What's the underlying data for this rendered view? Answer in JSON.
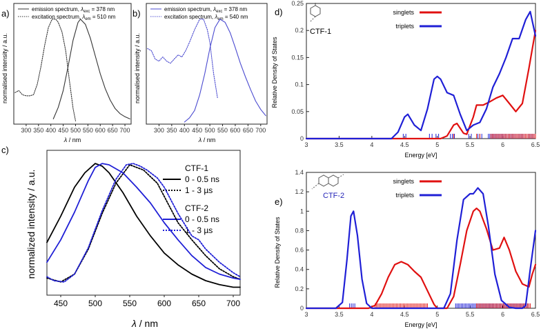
{
  "colors": {
    "black": "#222222",
    "blue": "#1f1fd6",
    "red": "#e01010",
    "navy": "#2525b8"
  },
  "chart_data": [
    {
      "id": "a",
      "type": "line",
      "panel_label": "a)",
      "xlabel_italic": "λ",
      "xlabel_rest": " / nm",
      "ylabel": "normalised intensity / a.u.",
      "xlim": [
        250,
        725
      ],
      "ylim": [
        0,
        1.15
      ],
      "xticks": [
        "300",
        "350",
        "400",
        "450",
        "500",
        "550",
        "600",
        "650",
        "700"
      ],
      "legend": [
        {
          "name": "emission spectrum, ",
          "sym": "λ",
          "sub": "exc",
          "tail": " = 378 nm",
          "style": "solid"
        },
        {
          "name": "excitation spectrum, ",
          "sym": "λ",
          "sub": "em",
          "tail": " = 510 nm",
          "style": "dotted"
        }
      ],
      "series": [
        {
          "name": "emission",
          "style": "solid",
          "color": "#333333",
          "x": [
            410,
            430,
            450,
            470,
            490,
            510,
            520,
            540,
            560,
            580,
            600,
            620,
            640,
            660,
            680,
            700,
            720
          ],
          "y": [
            0.05,
            0.16,
            0.32,
            0.55,
            0.8,
            0.97,
            1.0,
            0.95,
            0.82,
            0.65,
            0.48,
            0.34,
            0.23,
            0.15,
            0.1,
            0.07,
            0.05
          ]
        },
        {
          "name": "excitation",
          "style": "dotted",
          "color": "#333333",
          "x": [
            255,
            270,
            285,
            300,
            315,
            330,
            345,
            360,
            375,
            390,
            405,
            420,
            430,
            445,
            460,
            475,
            490,
            500
          ],
          "y": [
            0.3,
            0.32,
            0.28,
            0.27,
            0.27,
            0.28,
            0.38,
            0.55,
            0.75,
            0.92,
            1.0,
            1.0,
            0.97,
            0.88,
            0.7,
            0.42,
            0.15,
            0.03
          ]
        }
      ]
    },
    {
      "id": "b",
      "type": "line",
      "panel_label": "b)",
      "xlabel_italic": "λ",
      "xlabel_rest": " / nm",
      "ylabel": "normalised intensity / a.u.",
      "xlim": [
        250,
        725
      ],
      "ylim": [
        0,
        1.15
      ],
      "xticks": [
        "300",
        "350",
        "400",
        "450",
        "500",
        "550",
        "600",
        "650",
        "700"
      ],
      "legend": [
        {
          "name": "emission spectrum, ",
          "sym": "λ",
          "sub": "exc",
          "tail": " = 378 nm",
          "style": "solid"
        },
        {
          "name": "excitation spectrum, ",
          "sym": "λ",
          "sub": "em",
          "tail": " = 540 nm",
          "style": "dotted"
        }
      ],
      "series": [
        {
          "name": "emission",
          "style": "solid",
          "color": "#4a4ad0",
          "x": [
            400,
            420,
            440,
            460,
            480,
            500,
            520,
            540,
            560,
            580,
            600,
            620,
            640,
            660,
            680,
            700,
            720
          ],
          "y": [
            0.02,
            0.06,
            0.13,
            0.28,
            0.48,
            0.72,
            0.92,
            1.0,
            0.97,
            0.87,
            0.73,
            0.58,
            0.45,
            0.33,
            0.22,
            0.14,
            0.08
          ]
        },
        {
          "name": "excitation",
          "style": "dotted",
          "color": "#4a4ad0",
          "x": [
            255,
            270,
            285,
            300,
            315,
            330,
            345,
            360,
            375,
            390,
            405,
            420,
            440,
            460,
            475,
            490,
            500,
            515,
            530
          ],
          "y": [
            0.72,
            0.7,
            0.62,
            0.6,
            0.64,
            0.6,
            0.58,
            0.62,
            0.66,
            0.64,
            0.7,
            0.78,
            0.9,
            1.0,
            1.0,
            0.9,
            0.78,
            0.48,
            0.25
          ]
        }
      ]
    },
    {
      "id": "c",
      "type": "line",
      "panel_label": "c)",
      "xlabel_italic": "λ",
      "xlabel_rest": " / nm",
      "ylabel": "normalized intensity / a.u.",
      "xlim": [
        430,
        710
      ],
      "ylim": [
        0,
        1.1
      ],
      "xticks": [
        "450",
        "500",
        "550",
        "600",
        "650",
        "700"
      ],
      "legend_groups": [
        {
          "title": "CTF-1",
          "color": "#000000",
          "entries": [
            "0 - 0.5 ns",
            "1 - 3 µs"
          ]
        },
        {
          "title": "CTF-2",
          "color": "#1f1fd6",
          "entries": [
            "0 - 0.5 ns",
            "1 - 3 µs"
          ]
        }
      ],
      "series": [
        {
          "name": "CTF-1 0 - 0.5 ns",
          "style": "solid",
          "color": "#000000",
          "x": [
            430,
            450,
            470,
            485,
            500,
            510,
            520,
            540,
            560,
            580,
            600,
            620,
            640,
            660,
            680,
            700,
            710
          ],
          "y": [
            0.4,
            0.6,
            0.82,
            0.93,
            1.0,
            0.98,
            0.93,
            0.78,
            0.6,
            0.45,
            0.32,
            0.23,
            0.16,
            0.11,
            0.08,
            0.06,
            0.06
          ]
        },
        {
          "name": "CTF-1 1 - 3 µs",
          "style": "dotted",
          "color": "#000000",
          "x": [
            430,
            450,
            470,
            490,
            510,
            530,
            550,
            560,
            570,
            580,
            590,
            600,
            620,
            640,
            660,
            680,
            700,
            710
          ],
          "y": [
            0.13,
            0.1,
            0.16,
            0.35,
            0.62,
            0.85,
            0.99,
            0.97,
            0.95,
            0.9,
            0.85,
            0.75,
            0.55,
            0.42,
            0.3,
            0.2,
            0.14,
            0.12
          ]
        },
        {
          "name": "CTF-2 0 - 0.5 ns",
          "style": "solid",
          "color": "#1f1fd6",
          "x": [
            430,
            450,
            470,
            490,
            500,
            510,
            520,
            540,
            560,
            580,
            600,
            620,
            640,
            660,
            680,
            700,
            710
          ],
          "y": [
            0.25,
            0.42,
            0.63,
            0.87,
            0.97,
            1.0,
            0.99,
            0.93,
            0.82,
            0.7,
            0.55,
            0.42,
            0.3,
            0.21,
            0.16,
            0.13,
            0.12
          ]
        },
        {
          "name": "CTF-2 1 - 3 µs",
          "style": "dotted",
          "color": "#1f1fd6",
          "x": [
            430,
            440,
            455,
            470,
            490,
            510,
            530,
            545,
            555,
            565,
            575,
            590,
            600,
            620,
            640,
            650,
            660,
            680,
            700,
            710
          ],
          "y": [
            0.14,
            0.11,
            0.1,
            0.16,
            0.36,
            0.64,
            0.88,
            0.99,
            1.0,
            0.98,
            0.95,
            0.89,
            0.82,
            0.62,
            0.45,
            0.42,
            0.35,
            0.25,
            0.17,
            0.14
          ]
        }
      ]
    },
    {
      "id": "d",
      "type": "line",
      "panel_label": "d)",
      "xlabel": "Energy [eV]",
      "ylabel": "Relative Density of States",
      "xlim": [
        3,
        6.5
      ],
      "ylim": [
        0,
        0.25
      ],
      "xticks": [
        "3",
        "3.5",
        "4",
        "4.5",
        "5",
        "5.5",
        "6",
        "6.5"
      ],
      "yticks": [
        "0",
        "0.05",
        "0.1",
        "0.15",
        "0.2",
        "0.25"
      ],
      "molecule_label": "CTF-1",
      "legend": [
        {
          "name": "singlets",
          "color": "#e01010"
        },
        {
          "name": "triplets",
          "color": "#1f1fd6"
        }
      ],
      "series": [
        {
          "name": "singlets",
          "color": "#e01010",
          "x": [
            3,
            5.05,
            5.15,
            5.25,
            5.3,
            5.4,
            5.45,
            5.55,
            5.6,
            5.7,
            5.8,
            5.9,
            6.0,
            6.1,
            6.2,
            6.3,
            6.4,
            6.5
          ],
          "y": [
            0,
            0,
            0.005,
            0.025,
            0.028,
            0.01,
            0.008,
            0.04,
            0.062,
            0.062,
            0.068,
            0.075,
            0.08,
            0.065,
            0.05,
            0.065,
            0.13,
            0.2
          ]
        },
        {
          "name": "triplets",
          "color": "#1f1fd6",
          "x": [
            3,
            4.3,
            4.4,
            4.5,
            4.55,
            4.65,
            4.75,
            4.85,
            4.95,
            5.0,
            5.05,
            5.15,
            5.25,
            5.35,
            5.45,
            5.55,
            5.65,
            5.75,
            5.85,
            5.95,
            6.05,
            6.15,
            6.25,
            6.35,
            6.42,
            6.5
          ],
          "y": [
            0,
            0,
            0.012,
            0.04,
            0.045,
            0.025,
            0.015,
            0.055,
            0.11,
            0.115,
            0.11,
            0.085,
            0.08,
            0.045,
            0.015,
            0.025,
            0.03,
            0.055,
            0.095,
            0.12,
            0.15,
            0.185,
            0.185,
            0.22,
            0.235,
            0.19
          ]
        }
      ],
      "stick_ranges": [
        {
          "name": "triplets",
          "color": "#1f1fd6",
          "ranges": [
            [
              4.48,
              4.52
            ],
            [
              4.88,
              4.92
            ],
            [
              4.98,
              5.02
            ],
            [
              5.2,
              5.26
            ],
            [
              5.48,
              5.52
            ],
            [
              5.62,
              5.68
            ],
            [
              5.78,
              6.5
            ]
          ]
        },
        {
          "name": "singlets",
          "color": "#e01010",
          "ranges": [
            [
              5.25,
              5.28
            ],
            [
              5.6,
              5.65
            ],
            [
              5.82,
              6.5
            ]
          ]
        }
      ]
    },
    {
      "id": "e",
      "type": "line",
      "panel_label": "e)",
      "xlabel": "Energy [eV]",
      "ylabel": "Relative Density of States",
      "xlim": [
        3,
        6.5
      ],
      "ylim": [
        0,
        1.4
      ],
      "xticks": [
        "3",
        "3.5",
        "4",
        "4.5",
        "5",
        "5.5",
        "6",
        "6.5"
      ],
      "yticks": [
        "0",
        "0.2",
        "0.4",
        "0.6",
        "0.8",
        "1",
        "1.2",
        "1.4"
      ],
      "molecule_label": "CTF-2",
      "legend": [
        {
          "name": "singlets",
          "color": "#e01010"
        },
        {
          "name": "triplets",
          "color": "#1f1fd6"
        }
      ],
      "series": [
        {
          "name": "singlets",
          "color": "#e01010",
          "x": [
            3,
            3.95,
            4.05,
            4.15,
            4.25,
            4.35,
            4.45,
            4.55,
            4.65,
            4.75,
            4.85,
            4.95,
            5.0,
            5.15,
            5.25,
            5.35,
            5.45,
            5.55,
            5.6,
            5.65,
            5.75,
            5.85,
            5.95,
            6.02,
            6.1,
            6.2,
            6.3,
            6.4,
            6.45,
            6.5
          ],
          "y": [
            0,
            0,
            0.03,
            0.15,
            0.32,
            0.45,
            0.48,
            0.45,
            0.38,
            0.32,
            0.18,
            0.04,
            0,
            0,
            0.12,
            0.45,
            0.8,
            1.0,
            1.03,
            1.0,
            0.82,
            0.6,
            0.62,
            0.73,
            0.6,
            0.38,
            0.25,
            0.22,
            0.35,
            0.45
          ]
        },
        {
          "name": "triplets",
          "color": "#1f1fd6",
          "x": [
            3,
            3.45,
            3.55,
            3.62,
            3.68,
            3.72,
            3.78,
            3.85,
            3.92,
            4.0,
            5.1,
            5.2,
            5.3,
            5.4,
            5.5,
            5.55,
            5.62,
            5.7,
            5.78,
            5.88,
            5.98,
            6.1,
            6.2,
            6.3,
            6.35,
            6.42,
            6.5
          ],
          "y": [
            0,
            0,
            0.06,
            0.5,
            0.95,
            1.0,
            0.75,
            0.3,
            0.05,
            0,
            0,
            0.15,
            0.7,
            1.12,
            1.18,
            1.18,
            1.24,
            1.18,
            0.85,
            0.35,
            0.08,
            0.01,
            0,
            0,
            0.03,
            0.4,
            0.8
          ]
        }
      ],
      "stick_ranges": [
        {
          "name": "triplets",
          "color": "#1f1fd6",
          "ranges": [
            [
              3.66,
              3.74
            ],
            [
              5.28,
              6.38
            ]
          ]
        },
        {
          "name": "singlets",
          "color": "#e01010",
          "ranges": [
            [
              4.05,
              4.85
            ],
            [
              5.6,
              6.42
            ]
          ]
        }
      ]
    }
  ]
}
